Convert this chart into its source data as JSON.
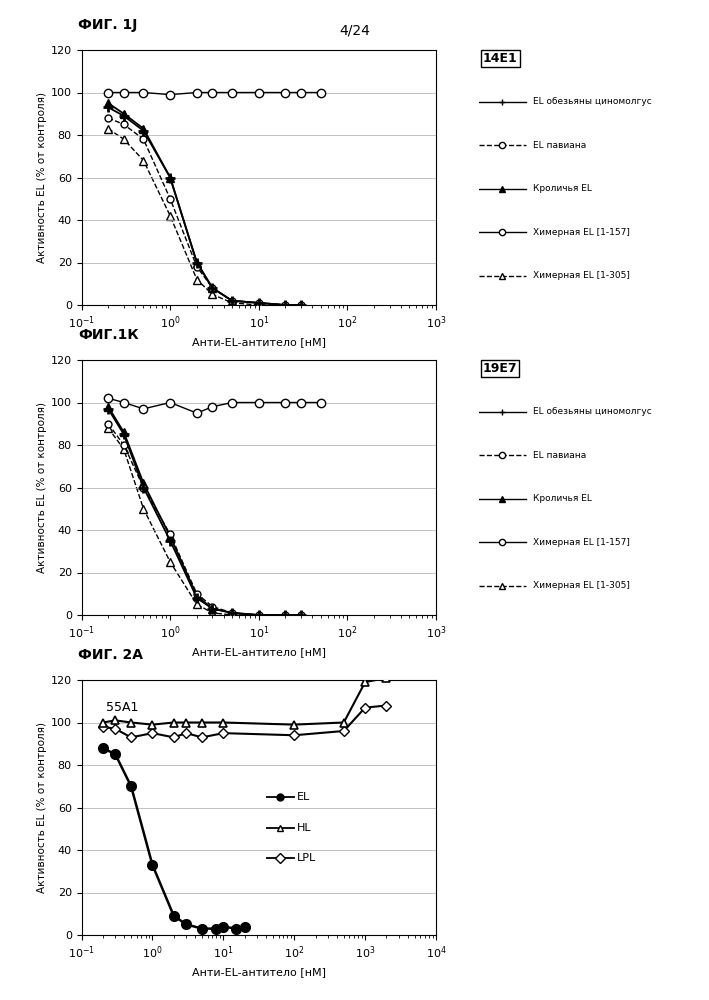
{
  "page_label": "4/24",
  "fig1j_label": "ФИГ. 1J",
  "fig1k_label": "ФИГ.1К",
  "fig2a_label": "ФИГ. 2А",
  "ylabel": "Активность EL (% от контроля)",
  "xlabel_nm": "Анти-EL-антитело [нМ]",
  "xlabel_nm2": "Анти-EL-антитело [нМ]",
  "ylim": [
    0,
    120
  ],
  "yticks": [
    0,
    20,
    40,
    60,
    80,
    100,
    120
  ],
  "legend1_title": "14Е1",
  "legend2_title": "19Е7",
  "legend3_title": "55А1",
  "legend12_entries": [
    "EL обезьяны циномолгус",
    "EL павиана",
    "Кроличья EL",
    "Химерная EL [1-157]",
    "Химерная EL [1-305]"
  ],
  "legend3_entries": [
    "EL",
    "HL",
    "LPL"
  ],
  "fig1j": {
    "cynomolgus_x": [
      0.2,
      0.3,
      0.5,
      1.0,
      2.0,
      3.0,
      5.0,
      10.0,
      20.0,
      30.0
    ],
    "cynomolgus_y": [
      93,
      89,
      82,
      60,
      20,
      8,
      2,
      1,
      0,
      0
    ],
    "baboon_x": [
      0.2,
      0.3,
      0.5,
      1.0,
      2.0,
      3.0,
      5.0,
      10.0,
      20.0,
      30.0
    ],
    "baboon_y": [
      88,
      85,
      78,
      50,
      18,
      8,
      2,
      1,
      0,
      0
    ],
    "rabbit_x": [
      0.2,
      0.3,
      0.5,
      1.0,
      2.0,
      3.0,
      5.0,
      10.0,
      20.0,
      30.0
    ],
    "rabbit_y": [
      95,
      90,
      83,
      60,
      20,
      8,
      2,
      1,
      0,
      0
    ],
    "chimeric157_x": [
      0.2,
      0.3,
      0.5,
      1.0,
      2.0,
      3.0,
      5.0,
      10.0,
      20.0,
      30.0,
      50.0
    ],
    "chimeric157_y": [
      100,
      100,
      100,
      99,
      100,
      100,
      100,
      100,
      100,
      100,
      100
    ],
    "chimeric305_x": [
      0.2,
      0.3,
      0.5,
      1.0,
      2.0,
      3.0,
      5.0,
      10.0,
      20.0,
      30.0
    ],
    "chimeric305_y": [
      83,
      78,
      68,
      42,
      12,
      5,
      1,
      0,
      0,
      0
    ]
  },
  "fig1k": {
    "cynomolgus_x": [
      0.2,
      0.3,
      0.5,
      1.0,
      2.0,
      3.0,
      5.0,
      10.0,
      20.0,
      30.0
    ],
    "cynomolgus_y": [
      97,
      85,
      60,
      35,
      8,
      3,
      1,
      0,
      0,
      0
    ],
    "baboon_x": [
      0.2,
      0.3,
      0.5,
      1.0,
      2.0,
      3.0,
      5.0,
      10.0,
      20.0,
      30.0
    ],
    "baboon_y": [
      90,
      80,
      60,
      38,
      10,
      4,
      1,
      0,
      0,
      0
    ],
    "rabbit_x": [
      0.2,
      0.3,
      0.5,
      1.0,
      2.0,
      3.0,
      5.0,
      10.0,
      20.0,
      30.0
    ],
    "rabbit_y": [
      98,
      86,
      62,
      37,
      9,
      3,
      1,
      0,
      0,
      0
    ],
    "chimeric157_x": [
      0.2,
      0.3,
      0.5,
      1.0,
      2.0,
      3.0,
      5.0,
      10.0,
      20.0,
      30.0,
      50.0
    ],
    "chimeric157_y": [
      102,
      100,
      97,
      100,
      95,
      98,
      100,
      100,
      100,
      100,
      100
    ],
    "chimeric305_x": [
      0.2,
      0.3,
      0.5,
      1.0,
      2.0,
      3.0,
      5.0,
      10.0,
      20.0,
      30.0
    ],
    "chimeric305_y": [
      88,
      78,
      50,
      25,
      5,
      1,
      0,
      0,
      0,
      0
    ]
  },
  "fig2a": {
    "EL_x": [
      0.2,
      0.3,
      0.5,
      1.0,
      2.0,
      3.0,
      5.0,
      8.0,
      10.0,
      15.0,
      20.0
    ],
    "EL_y": [
      88,
      85,
      70,
      33,
      9,
      5,
      3,
      3,
      4,
      3,
      4
    ],
    "HL_x": [
      0.2,
      0.3,
      0.5,
      1.0,
      2.0,
      3.0,
      5.0,
      10.0,
      100.0,
      500.0,
      1000.0,
      2000.0
    ],
    "HL_y": [
      100,
      101,
      100,
      99,
      100,
      100,
      100,
      100,
      99,
      100,
      119,
      121
    ],
    "LPL_x": [
      0.2,
      0.3,
      0.5,
      1.0,
      2.0,
      3.0,
      5.0,
      10.0,
      100.0,
      500.0,
      1000.0,
      2000.0
    ],
    "LPL_y": [
      98,
      97,
      93,
      95,
      93,
      95,
      93,
      95,
      94,
      96,
      107,
      108
    ]
  }
}
